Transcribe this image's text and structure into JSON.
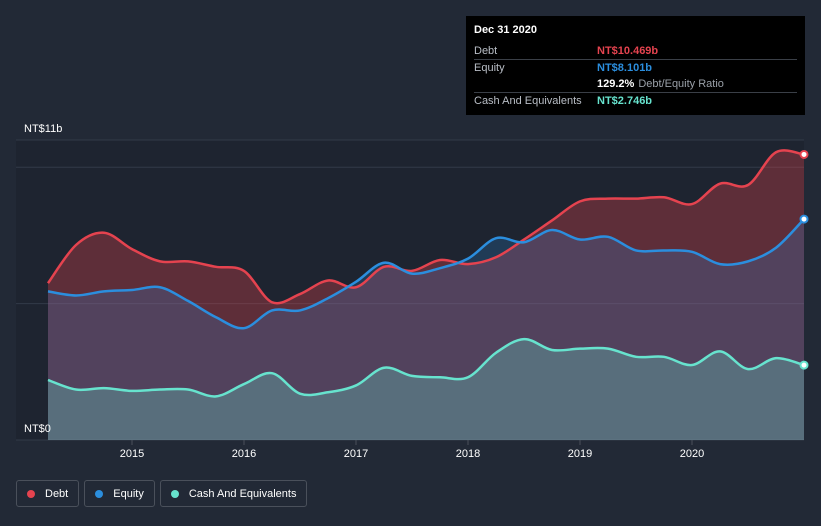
{
  "chart_data": {
    "type": "area",
    "y_top_label": "NT$11b",
    "y_bottom_label": "NT$0",
    "ylim": [
      0,
      11
    ],
    "xlim": [
      2014.25,
      2021.0
    ],
    "x_tick_labels": [
      "2015",
      "2016",
      "2017",
      "2018",
      "2019",
      "2020"
    ],
    "x_tick_values": [
      2015,
      2016,
      2017,
      2018,
      2019,
      2020
    ],
    "grid": "horizontal",
    "legend_position": "bottom-left",
    "series": [
      {
        "name": "Debt",
        "color": "#e5434f",
        "x": [
          2014.25,
          2014.5,
          2014.75,
          2015.0,
          2015.25,
          2015.5,
          2015.75,
          2016.0,
          2016.25,
          2016.5,
          2016.75,
          2017.0,
          2017.25,
          2017.5,
          2017.75,
          2018.0,
          2018.25,
          2018.5,
          2018.75,
          2019.0,
          2019.25,
          2019.5,
          2019.75,
          2020.0,
          2020.25,
          2020.5,
          2020.75,
          2021.0
        ],
        "values": [
          5.75,
          7.15,
          7.6,
          7.0,
          6.55,
          6.55,
          6.35,
          6.2,
          5.05,
          5.35,
          5.85,
          5.6,
          6.35,
          6.2,
          6.6,
          6.45,
          6.7,
          7.35,
          8.05,
          8.75,
          8.85,
          8.85,
          8.9,
          8.65,
          9.4,
          9.35,
          10.55,
          10.47
        ]
      },
      {
        "name": "Equity",
        "color": "#2b8ede",
        "x": [
          2014.25,
          2014.5,
          2014.75,
          2015.0,
          2015.25,
          2015.5,
          2015.75,
          2016.0,
          2016.25,
          2016.5,
          2016.75,
          2017.0,
          2017.25,
          2017.5,
          2017.75,
          2018.0,
          2018.25,
          2018.5,
          2018.75,
          2019.0,
          2019.25,
          2019.5,
          2019.75,
          2020.0,
          2020.25,
          2020.5,
          2020.75,
          2021.0
        ],
        "values": [
          5.45,
          5.3,
          5.45,
          5.5,
          5.6,
          5.1,
          4.5,
          4.1,
          4.75,
          4.75,
          5.2,
          5.8,
          6.5,
          6.1,
          6.3,
          6.65,
          7.4,
          7.25,
          7.7,
          7.35,
          7.45,
          6.95,
          6.95,
          6.9,
          6.45,
          6.55,
          7.05,
          8.1
        ]
      },
      {
        "name": "Cash And Equivalents",
        "color": "#67e3ce",
        "x": [
          2014.25,
          2014.5,
          2014.75,
          2015.0,
          2015.25,
          2015.5,
          2015.75,
          2016.0,
          2016.25,
          2016.5,
          2016.75,
          2017.0,
          2017.25,
          2017.5,
          2017.75,
          2018.0,
          2018.25,
          2018.5,
          2018.75,
          2019.0,
          2019.25,
          2019.5,
          2019.75,
          2020.0,
          2020.25,
          2020.5,
          2020.75,
          2021.0
        ],
        "values": [
          2.2,
          1.85,
          1.9,
          1.8,
          1.85,
          1.85,
          1.6,
          2.05,
          2.45,
          1.7,
          1.75,
          2.0,
          2.65,
          2.35,
          2.3,
          2.3,
          3.2,
          3.7,
          3.3,
          3.35,
          3.35,
          3.05,
          3.05,
          2.75,
          3.25,
          2.6,
          3.0,
          2.746
        ]
      }
    ]
  },
  "tooltip": {
    "date": "Dec 31 2020",
    "rows": [
      {
        "name": "Debt",
        "value": "NT$10.469b",
        "color": "#e5434f"
      },
      {
        "name": "Equity",
        "value": "NT$8.101b",
        "color": "#2b8ede"
      },
      {
        "name": "",
        "value": "129.2%",
        "suffix": "Debt/Equity Ratio",
        "color": "#ffffff"
      },
      {
        "name": "Cash And Equivalents",
        "value": "NT$2.746b",
        "color": "#67e3ce"
      }
    ]
  },
  "legend": [
    {
      "label": "Debt",
      "color": "#e5434f"
    },
    {
      "label": "Equity",
      "color": "#2b8ede"
    },
    {
      "label": "Cash And Equivalents",
      "color": "#67e3ce"
    }
  ]
}
